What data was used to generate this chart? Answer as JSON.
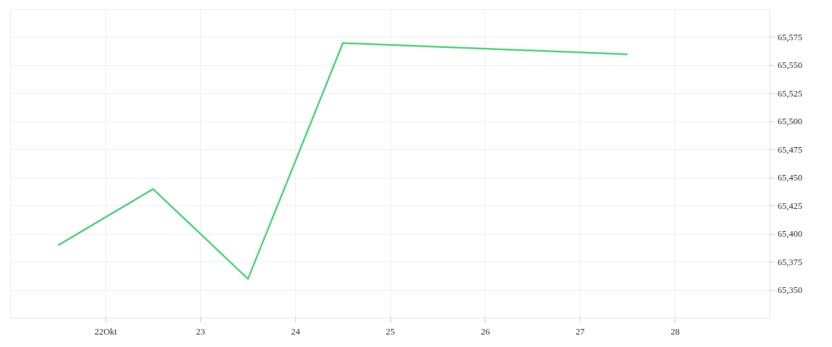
{
  "chart_data": {
    "type": "line",
    "x": [
      21.5,
      22.5,
      23.5,
      24.5,
      27.5
    ],
    "series": [
      {
        "color": "#4cd47c",
        "values": [
          65390,
          65440,
          65360,
          65570,
          65560
        ]
      }
    ],
    "xlim": [
      21,
      29
    ],
    "xticks": [
      {
        "value": 22,
        "label": "22Okt"
      },
      23,
      24,
      25,
      26,
      27,
      28
    ],
    "ylim": [
      65325,
      65600
    ],
    "yticks": [
      {
        "value": 65350,
        "label": "65,350"
      },
      {
        "value": 65375,
        "label": "65,375"
      },
      {
        "value": 65400,
        "label": "65,400"
      },
      {
        "value": 65425,
        "label": "65,425"
      },
      {
        "value": 65450,
        "label": "65,450"
      },
      {
        "value": 65475,
        "label": "65,475"
      },
      {
        "value": 65500,
        "label": "65,500"
      },
      {
        "value": 65525,
        "label": "65,525"
      },
      {
        "value": 65550,
        "label": "65,550"
      },
      {
        "value": 65575,
        "label": "65,575"
      }
    ],
    "grid": true,
    "marker": "none",
    "line_style": "solid"
  }
}
